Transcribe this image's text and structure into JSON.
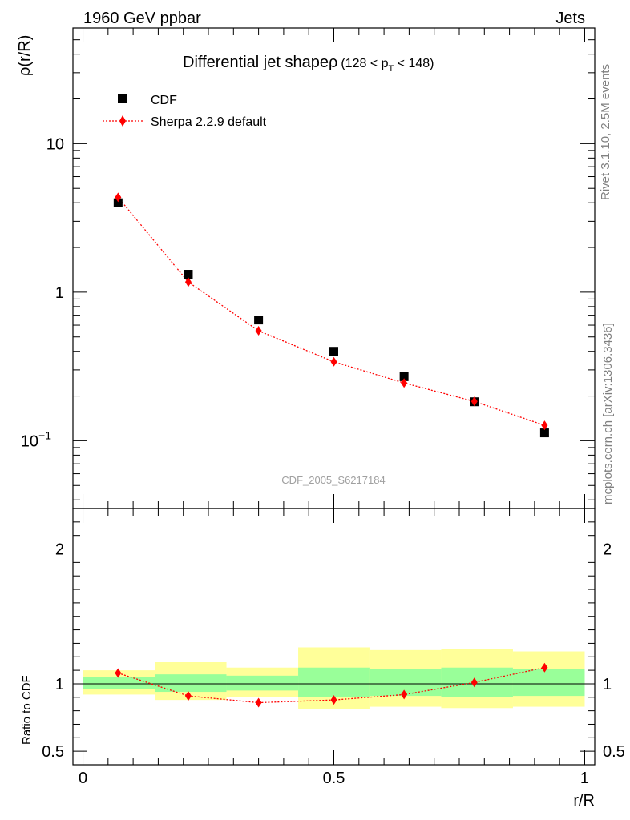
{
  "header": {
    "left": "1960 GeV ppbar",
    "right": "Jets"
  },
  "side": {
    "version": "Rivet 3.1.10,  2.5M events",
    "site": "mcplots.cern.ch [arXiv:1306.3436]"
  },
  "chart_data": {
    "type": "scatter",
    "title": "Differential jet shapeρ",
    "title_cut_prefix": "(128 < p",
    "title_cut_sub": "T",
    "title_cut_suffix": " < 148)",
    "analysis_label": "CDF_2005_S6217184",
    "xlabel": "r/R",
    "ylabel": "ρ(r/R)",
    "ratio_ylabel": "Ratio to CDF",
    "xlim": [
      -0.02,
      1.02
    ],
    "ylim": [
      0.035,
      60
    ],
    "yscale": "log",
    "ratio_ylim": [
      0.4,
      2.3
    ],
    "x_ticks": [
      {
        "value": 0,
        "label": "0"
      },
      {
        "value": 0.5,
        "label": "0.5"
      },
      {
        "value": 1,
        "label": "1"
      }
    ],
    "y_ticks": [
      {
        "value": 10,
        "label": "10"
      },
      {
        "value": 1,
        "label": "1"
      },
      {
        "value": 0.1,
        "label": "10",
        "sup": "−1"
      }
    ],
    "ratio_ticks": [
      {
        "value": 2,
        "label": "2"
      },
      {
        "value": 1,
        "label": "1"
      },
      {
        "value": 0.5,
        "label": "0.5"
      }
    ],
    "legend": [
      {
        "name": "CDF",
        "marker": "square",
        "color": "#000000"
      },
      {
        "name": "Sherpa 2.2.9 default",
        "marker": "diamond",
        "color": "#ff0000"
      }
    ],
    "bins": [
      0,
      0.143,
      0.286,
      0.429,
      0.571,
      0.714,
      0.857,
      1.0
    ],
    "x": [
      0.07,
      0.21,
      0.35,
      0.5,
      0.64,
      0.78,
      0.92
    ],
    "series": [
      {
        "name": "CDF",
        "values": [
          4.0,
          1.32,
          0.65,
          0.4,
          0.27,
          0.183,
          0.113
        ]
      },
      {
        "name": "Sherpa 2.2.9 default",
        "values": [
          4.35,
          1.17,
          0.55,
          0.34,
          0.245,
          0.184,
          0.127
        ]
      }
    ],
    "ratio": [
      1.08,
      0.91,
      0.86,
      0.88,
      0.92,
      1.01,
      1.12
    ],
    "band_inner": [
      [
        0.96,
        1.05
      ],
      [
        0.94,
        1.07
      ],
      [
        0.95,
        1.06
      ],
      [
        0.9,
        1.12
      ],
      [
        0.91,
        1.11
      ],
      [
        0.9,
        1.12
      ],
      [
        0.91,
        1.11
      ]
    ],
    "band_outer": [
      [
        0.92,
        1.1
      ],
      [
        0.88,
        1.16
      ],
      [
        0.9,
        1.12
      ],
      [
        0.81,
        1.27
      ],
      [
        0.83,
        1.25
      ],
      [
        0.82,
        1.26
      ],
      [
        0.83,
        1.24
      ]
    ]
  }
}
